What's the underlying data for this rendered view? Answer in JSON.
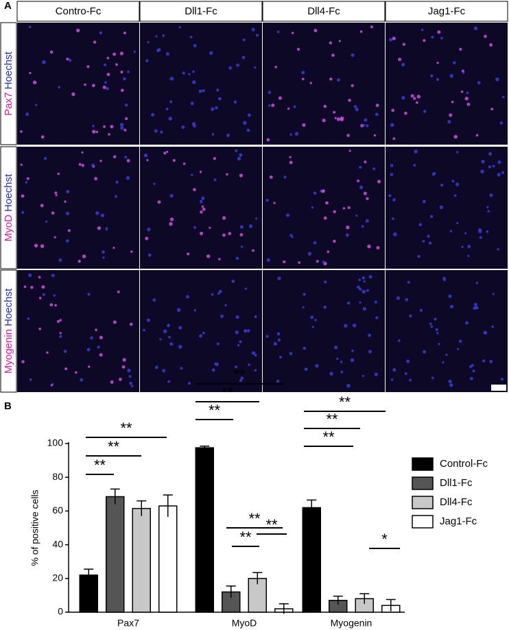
{
  "panel_a": {
    "label": "A",
    "columns": [
      "Contro-Fc",
      "Dll1-Fc",
      "Dll4-Fc",
      "Jag1-Fc"
    ],
    "rows": [
      {
        "marker": "Pax7",
        "stain": "Hoechst"
      },
      {
        "marker": "MyoD",
        "stain": "Hoechst"
      },
      {
        "marker": "Myogenin",
        "stain": "Hoechst"
      }
    ]
  },
  "panel_b_label": "B",
  "chart_data": {
    "type": "bar",
    "ylabel": "% of positive cells",
    "categories": [
      "Pax7",
      "MyoD",
      "Myogenin"
    ],
    "series": [
      {
        "name": "Control-Fc",
        "color": "#000000",
        "values": [
          22,
          97.5,
          62
        ],
        "errors": [
          3.5,
          1,
          4.5
        ]
      },
      {
        "name": "Dll1-Fc",
        "color": "#555555",
        "values": [
          68.5,
          12,
          7
        ],
        "errors": [
          4.5,
          3.5,
          2.5
        ]
      },
      {
        "name": "Dll4-Fc",
        "color": "#c8c8c8",
        "values": [
          61.5,
          20,
          8
        ],
        "errors": [
          4.5,
          3.5,
          3
        ]
      },
      {
        "name": "Jag1-Fc",
        "color": "#ffffff",
        "values": [
          63,
          2,
          4
        ],
        "errors": [
          6.5,
          3,
          3.5
        ]
      }
    ],
    "ylim": [
      0,
      100
    ],
    "yticks": [
      0,
      20,
      40,
      60,
      80,
      100
    ],
    "legend": "right",
    "annotations": [
      "**",
      "**",
      "**",
      "**",
      "**",
      "**",
      "**",
      "**",
      "**",
      "**",
      "**",
      "**",
      "*"
    ]
  }
}
